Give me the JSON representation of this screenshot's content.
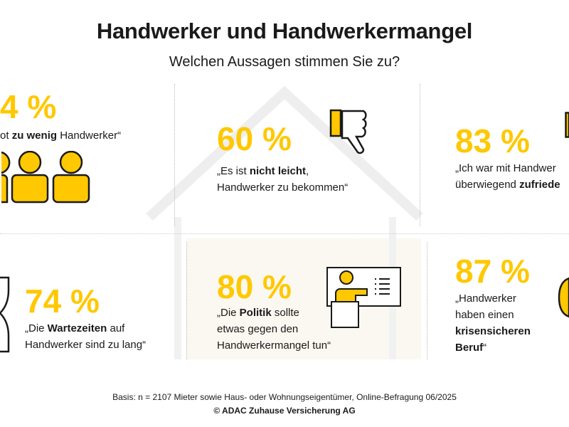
{
  "header": {
    "title": "Handwerker und Handwerkermangel",
    "subtitle": "Welchen Aussagen stimmen Sie zu?"
  },
  "colors": {
    "accent": "#FFC800",
    "text": "#1a1a1a",
    "house_fill": "#FBF8F1"
  },
  "items": [
    {
      "percent": "4 %",
      "pre": "ot ",
      "bold": "zu wenig",
      "post": " Handwerker“",
      "icon": "people-icon"
    },
    {
      "percent": "60 %",
      "pre": "„Es ist ",
      "bold": "nicht leicht",
      "post": ",",
      "line2": "Handwerker zu bekommen“",
      "icon": "thumbs-down-icon"
    },
    {
      "percent": "83 %",
      "pre": "„Ich war mit Handwer",
      "line2_pre": "überwiegend ",
      "line2_bold": "zufriede",
      "icon": "thumbs-up-icon"
    },
    {
      "percent": "74 %",
      "pre": "„Die ",
      "bold": "Wartezeiten",
      "post": " auf",
      "line2": "Handwerker sind zu lang“",
      "icon": "hourglass-icon"
    },
    {
      "percent": "80 %",
      "pre": "„Die ",
      "bold": "Politik",
      "post": " sollte",
      "line2": "etwas gegen den",
      "line3": "Handwerkermangel tun“",
      "icon": "presenter-icon"
    },
    {
      "percent": "87 %",
      "line1": "„Handwerker",
      "line2": "haben einen",
      "line3_bold": "krisensicheren",
      "line4_bold": "Beruf",
      "line4_post": "“",
      "icon": "shield-icon"
    }
  ],
  "footer": {
    "basis": "Basis: n = 2107 Mieter sowie Haus- oder Wohnungseigentümer, Online-Befragung 06/2025",
    "copyright": "© ADAC Zuhause Versicherung AG"
  }
}
